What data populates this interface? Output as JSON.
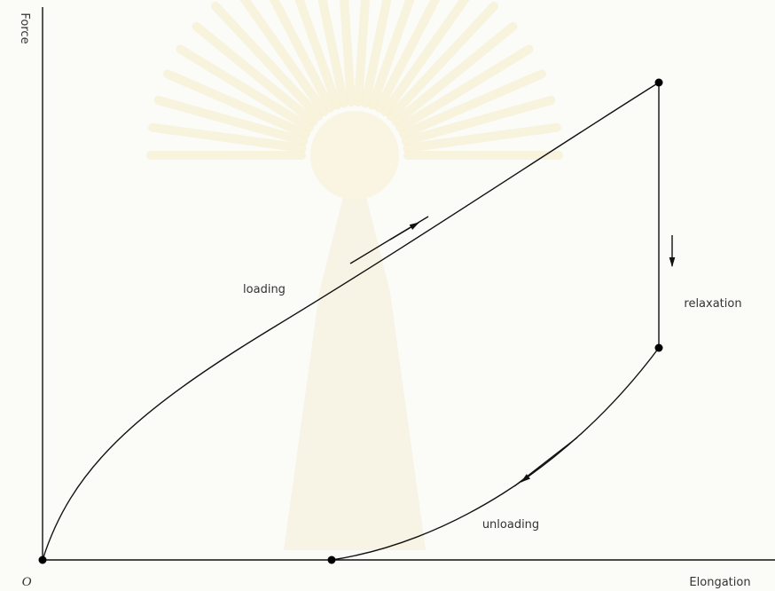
{
  "axes": {
    "y_label": "Force",
    "x_label": "Elongation",
    "origin": "O"
  },
  "curves": {
    "loading": "loading",
    "relaxation": "relaxation",
    "unloading": "unloading"
  }
}
